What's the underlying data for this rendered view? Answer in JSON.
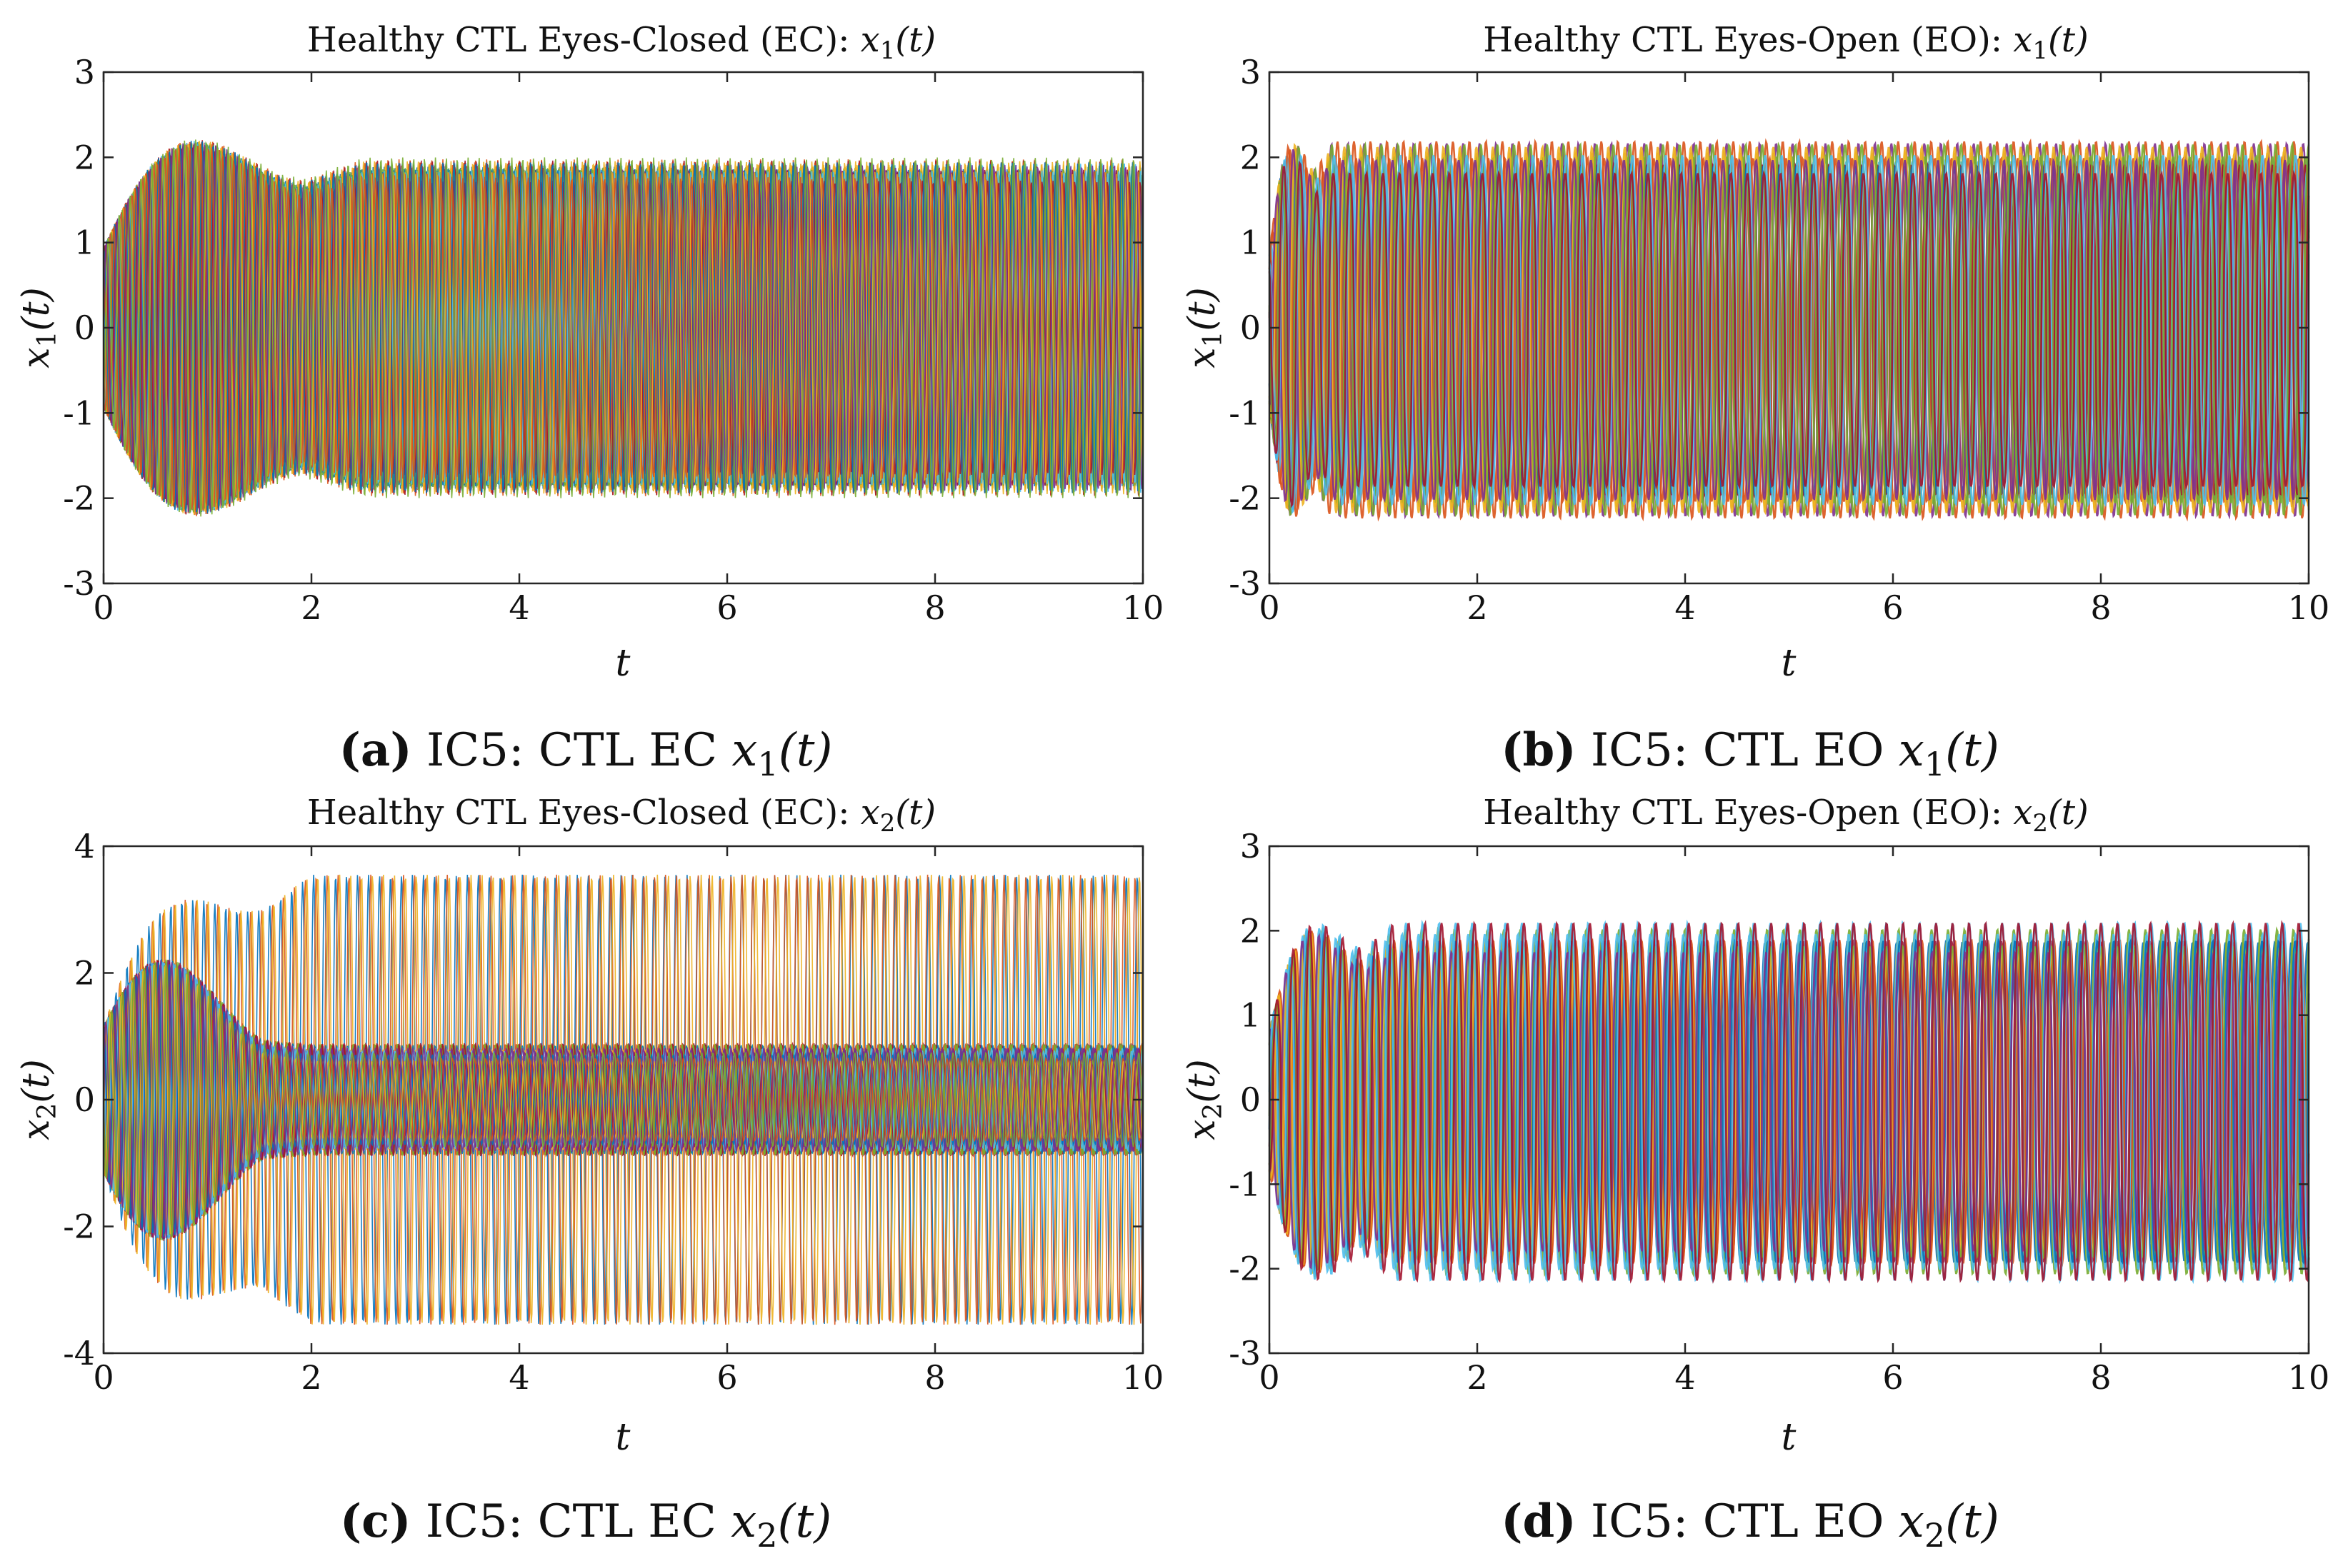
{
  "colors": [
    "#0072BD",
    "#D95319",
    "#EDB120",
    "#7E2F8E",
    "#77AC30",
    "#4DBEEE",
    "#A2142F"
  ],
  "chart_data": [
    {
      "type": "line",
      "id": "a",
      "title_prefix": "Healthy CTL Eyes-Closed (EC): ",
      "title_var": "x",
      "title_sub": "1",
      "title_suffix": "(t)",
      "xlabel": "t",
      "ylabel_var": "x",
      "ylabel_sub": "1",
      "ylabel_suffix": "(t)",
      "xlim": [
        0,
        10
      ],
      "ylim": [
        -3,
        3
      ],
      "xticks": [
        0,
        2,
        4,
        6,
        8,
        10
      ],
      "yticks": [
        -3,
        -2,
        -1,
        0,
        1,
        2,
        3
      ],
      "ytick_labels": [
        "-3",
        "-2",
        "-1",
        "0",
        "1",
        "2",
        "3"
      ],
      "series_count": 40,
      "steady_amplitude": 2.0,
      "transient_peak": 2.35,
      "transient_end": 2.5,
      "oscillation_frequency": 9.5,
      "caption_letter": "(a)",
      "caption_text": " IC5: CTL EC ",
      "caption_var": "x",
      "caption_sub": "1",
      "caption_suffix": "(t)"
    },
    {
      "type": "line",
      "id": "b",
      "title_prefix": "Healthy CTL Eyes-Open (EO): ",
      "title_var": "x",
      "title_sub": "1",
      "title_suffix": "(t)",
      "xlabel": "t",
      "ylabel_var": "x",
      "ylabel_sub": "1",
      "ylabel_suffix": "(t)",
      "xlim": [
        0,
        10
      ],
      "ylim": [
        -3,
        3
      ],
      "xticks": [
        0,
        2,
        4,
        6,
        8,
        10
      ],
      "yticks": [
        -3,
        -2,
        -1,
        0,
        1,
        2,
        3
      ],
      "ytick_labels": [
        "-3",
        "-2",
        "-1",
        "0",
        "1",
        "2",
        "3"
      ],
      "series_count": 14,
      "steady_max": 2.2,
      "steady_min": -2.25,
      "transient_end": 0.6,
      "oscillation_frequency": 6.3,
      "caption_letter": "(b)",
      "caption_text": " IC5: CTL EO ",
      "caption_var": "x",
      "caption_sub": "1",
      "caption_suffix": "(t)"
    },
    {
      "type": "line",
      "id": "c",
      "title_prefix": "Healthy CTL Eyes-Closed (EC): ",
      "title_var": "x",
      "title_sub": "2",
      "title_suffix": "(t)",
      "xlabel": "t",
      "ylabel_var": "x",
      "ylabel_sub": "2",
      "ylabel_suffix": "(t)",
      "xlim": [
        0,
        10
      ],
      "ylim": [
        -4,
        4
      ],
      "xticks": [
        0,
        2,
        4,
        6,
        8,
        10
      ],
      "yticks": [
        -4,
        -2,
        0,
        2,
        4
      ],
      "ytick_labels": [
        "-4",
        "-2",
        "0",
        "2",
        "4"
      ],
      "series_count": 40,
      "steady_amplitude": 0.9,
      "outlier_amplitude": 3.55,
      "transient_peak": 2.9,
      "transient_end": 2.0,
      "oscillation_frequency": 9.5,
      "caption_letter": "(c)",
      "caption_text": " IC5: CTL EC ",
      "caption_var": "x",
      "caption_sub": "2",
      "caption_suffix": "(t)"
    },
    {
      "type": "line",
      "id": "d",
      "title_prefix": "Healthy CTL Eyes-Open (EO): ",
      "title_var": "x",
      "title_sub": "2",
      "title_suffix": "(t)",
      "xlabel": "t",
      "ylabel_var": "x",
      "ylabel_sub": "2",
      "ylabel_suffix": "(t)",
      "xlim": [
        0,
        10
      ],
      "ylim": [
        -3,
        3
      ],
      "xticks": [
        0,
        2,
        4,
        6,
        8,
        10
      ],
      "yticks": [
        -3,
        -2,
        -1,
        0,
        1,
        2,
        3
      ],
      "ytick_labels": [
        "-3",
        "-2",
        "-1",
        "0",
        "1",
        "2",
        "3"
      ],
      "series_count": 14,
      "steady_max": 2.1,
      "steady_min": -2.15,
      "transient_end": 1.2,
      "oscillation_frequency": 6.3,
      "caption_letter": "(d)",
      "caption_text": " IC5: CTL EO ",
      "caption_var": "x",
      "caption_sub": "2",
      "caption_suffix": "(t)"
    }
  ]
}
